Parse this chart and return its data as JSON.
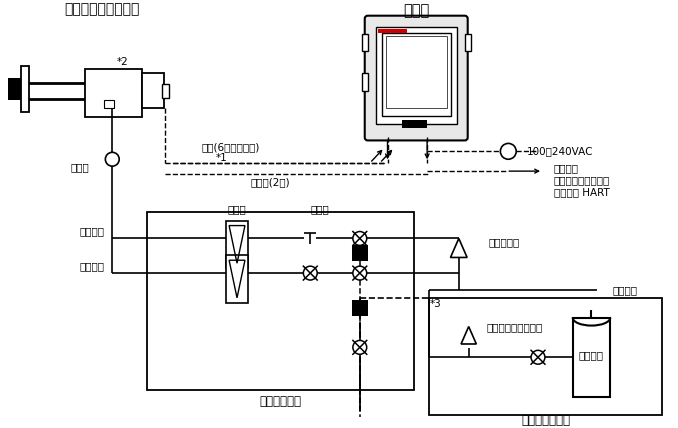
{
  "title": "分离式氧化锆检测器",
  "converter_label": "变换器",
  "signal_label": "信号(6芯屏蔽电缆)",
  "star1_label": "*1",
  "star2_label": "*2",
  "star3_label": "*3",
  "heater_label": "加热器(2芯)",
  "check_valve_label": "止回阀",
  "ref_gas_label": "参比气体",
  "cal_gas_label": "校正气体",
  "flow_meter_label": "流量计",
  "needle_valve_label": "针形阀",
  "auto_cal_label": "自动校正单元",
  "gas_regulator_label": "气体调节阀",
  "instrument_gas_label": "仪表气体",
  "cal_pressure_label": "校正气体压力调节器",
  "zero_cylinder_label": "零点气瓶",
  "cal_box_label": "校正气体单元箱",
  "power_label": "100～240VAC",
  "contact_input_label": "触点输入",
  "analog_output_label": "模拟输出，触点输出",
  "digital_output_label": "数字输出 HART",
  "bg_color": "#ffffff",
  "fs": 7.5,
  "fs_title": 9.5,
  "fs_label": 8.5
}
